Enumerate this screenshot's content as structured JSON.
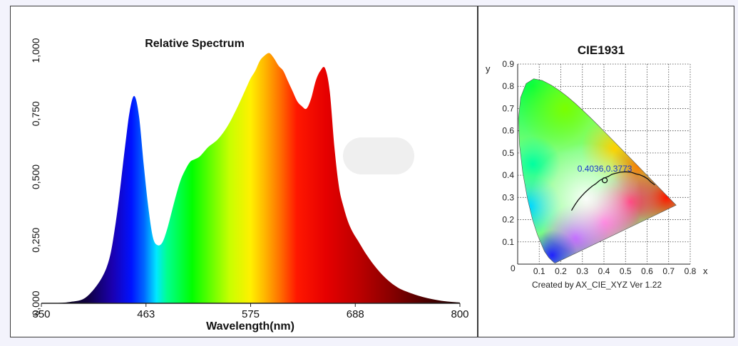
{
  "spectrum": {
    "chart_data": {
      "type": "area",
      "title": "Relative Spectrum",
      "xlabel": "Wavelength(nm)",
      "ylabel": "",
      "xlim": [
        350,
        800
      ],
      "ylim": [
        0,
        1.0
      ],
      "xticks": [
        "350",
        "463",
        "575",
        "688",
        "800"
      ],
      "yticks": [
        "0,000",
        "0,250",
        "0,500",
        "0,750",
        "1,000"
      ],
      "x": [
        350,
        380,
        400,
        420,
        430,
        440,
        445,
        450,
        455,
        460,
        465,
        470,
        475,
        480,
        485,
        490,
        495,
        500,
        505,
        510,
        515,
        520,
        525,
        530,
        540,
        550,
        560,
        570,
        575,
        580,
        585,
        590,
        595,
        600,
        605,
        610,
        615,
        620,
        625,
        630,
        635,
        640,
        645,
        650,
        655,
        660,
        665,
        670,
        675,
        680,
        685,
        690,
        700,
        710,
        720,
        730,
        740,
        760,
        780,
        800
      ],
      "values": [
        0,
        0.005,
        0.03,
        0.14,
        0.32,
        0.62,
        0.76,
        0.82,
        0.74,
        0.55,
        0.38,
        0.26,
        0.23,
        0.24,
        0.29,
        0.36,
        0.43,
        0.49,
        0.53,
        0.56,
        0.57,
        0.58,
        0.6,
        0.62,
        0.65,
        0.7,
        0.77,
        0.85,
        0.89,
        0.92,
        0.96,
        0.98,
        0.99,
        0.97,
        0.94,
        0.92,
        0.88,
        0.84,
        0.8,
        0.78,
        0.77,
        0.81,
        0.88,
        0.92,
        0.93,
        0.84,
        0.62,
        0.46,
        0.38,
        0.32,
        0.28,
        0.25,
        0.19,
        0.14,
        0.1,
        0.07,
        0.05,
        0.025,
        0.01,
        0.003
      ]
    },
    "pill_label": ""
  },
  "cie": {
    "chart_data": {
      "type": "scatter",
      "title": "CIE1931",
      "xlabel": "x",
      "ylabel": "y",
      "xlim": [
        0,
        0.8
      ],
      "ylim": [
        0,
        0.9
      ],
      "xticks": [
        "0.1",
        "0.2",
        "0.3",
        "0.4",
        "0.5",
        "0.6",
        "0.7",
        "0.8"
      ],
      "yticks": [
        "0.1",
        "0.2",
        "0.3",
        "0.4",
        "0.5",
        "0.6",
        "0.7",
        "0.8",
        "0.9"
      ],
      "origin_tick": "0",
      "point": {
        "x": 0.4036,
        "y": 0.3773,
        "label": "0.4036,0.3773"
      },
      "locus": [
        [
          0.1741,
          0.005
        ],
        [
          0.1738,
          0.0049
        ],
        [
          0.1733,
          0.0048
        ],
        [
          0.1726,
          0.0048
        ],
        [
          0.1714,
          0.0051
        ],
        [
          0.1689,
          0.0069
        ],
        [
          0.1644,
          0.0109
        ],
        [
          0.1566,
          0.0177
        ],
        [
          0.144,
          0.0297
        ],
        [
          0.1241,
          0.0578
        ],
        [
          0.0913,
          0.1327
        ],
        [
          0.0687,
          0.2007
        ],
        [
          0.0454,
          0.295
        ],
        [
          0.0235,
          0.4127
        ],
        [
          0.0082,
          0.5384
        ],
        [
          0.0039,
          0.6548
        ],
        [
          0.0139,
          0.7502
        ],
        [
          0.0389,
          0.812
        ],
        [
          0.0743,
          0.8338
        ],
        [
          0.1142,
          0.8262
        ],
        [
          0.1547,
          0.8059
        ],
        [
          0.1929,
          0.7816
        ],
        [
          0.2296,
          0.7543
        ],
        [
          0.2658,
          0.7243
        ],
        [
          0.3016,
          0.6923
        ],
        [
          0.3373,
          0.6589
        ],
        [
          0.3731,
          0.6245
        ],
        [
          0.4087,
          0.5896
        ],
        [
          0.4441,
          0.5547
        ],
        [
          0.4788,
          0.5202
        ],
        [
          0.5125,
          0.4866
        ],
        [
          0.5448,
          0.4544
        ],
        [
          0.5752,
          0.4242
        ],
        [
          0.6029,
          0.3965
        ],
        [
          0.627,
          0.3725
        ],
        [
          0.6482,
          0.3514
        ],
        [
          0.6658,
          0.334
        ],
        [
          0.6801,
          0.3197
        ],
        [
          0.6915,
          0.3083
        ],
        [
          0.7006,
          0.2993
        ],
        [
          0.7079,
          0.292
        ],
        [
          0.714,
          0.2859
        ],
        [
          0.719,
          0.2809
        ],
        [
          0.723,
          0.277
        ],
        [
          0.726,
          0.274
        ],
        [
          0.7347,
          0.2653
        ]
      ],
      "planckian": [
        [
          0.2495,
          0.2412
        ],
        [
          0.2653,
          0.2666
        ],
        [
          0.2807,
          0.2883
        ],
        [
          0.2952,
          0.3048
        ],
        [
          0.3135,
          0.3236
        ],
        [
          0.3309,
          0.3391
        ],
        [
          0.3464,
          0.3516
        ],
        [
          0.3611,
          0.3608
        ],
        [
          0.3805,
          0.3768
        ],
        [
          0.4,
          0.387
        ],
        [
          0.42,
          0.3943
        ],
        [
          0.4369,
          0.4041
        ],
        [
          0.4526,
          0.4083
        ],
        [
          0.4762,
          0.4137
        ],
        [
          0.5001,
          0.4153
        ],
        [
          0.5267,
          0.4133
        ],
        [
          0.5485,
          0.4061
        ],
        [
          0.5645,
          0.4025
        ],
        [
          0.5856,
          0.3939
        ],
        [
          0.6029,
          0.3835
        ],
        [
          0.617,
          0.3698
        ],
        [
          0.6359,
          0.3562
        ]
      ],
      "footer": "Created by AX_CIE_XYZ Ver 1.22"
    }
  },
  "colors": {
    "frame_bg": "#ffffff",
    "page_bg": "#f3f3fc",
    "border": "#3a3a3a",
    "point_label": "#1a37c8"
  }
}
